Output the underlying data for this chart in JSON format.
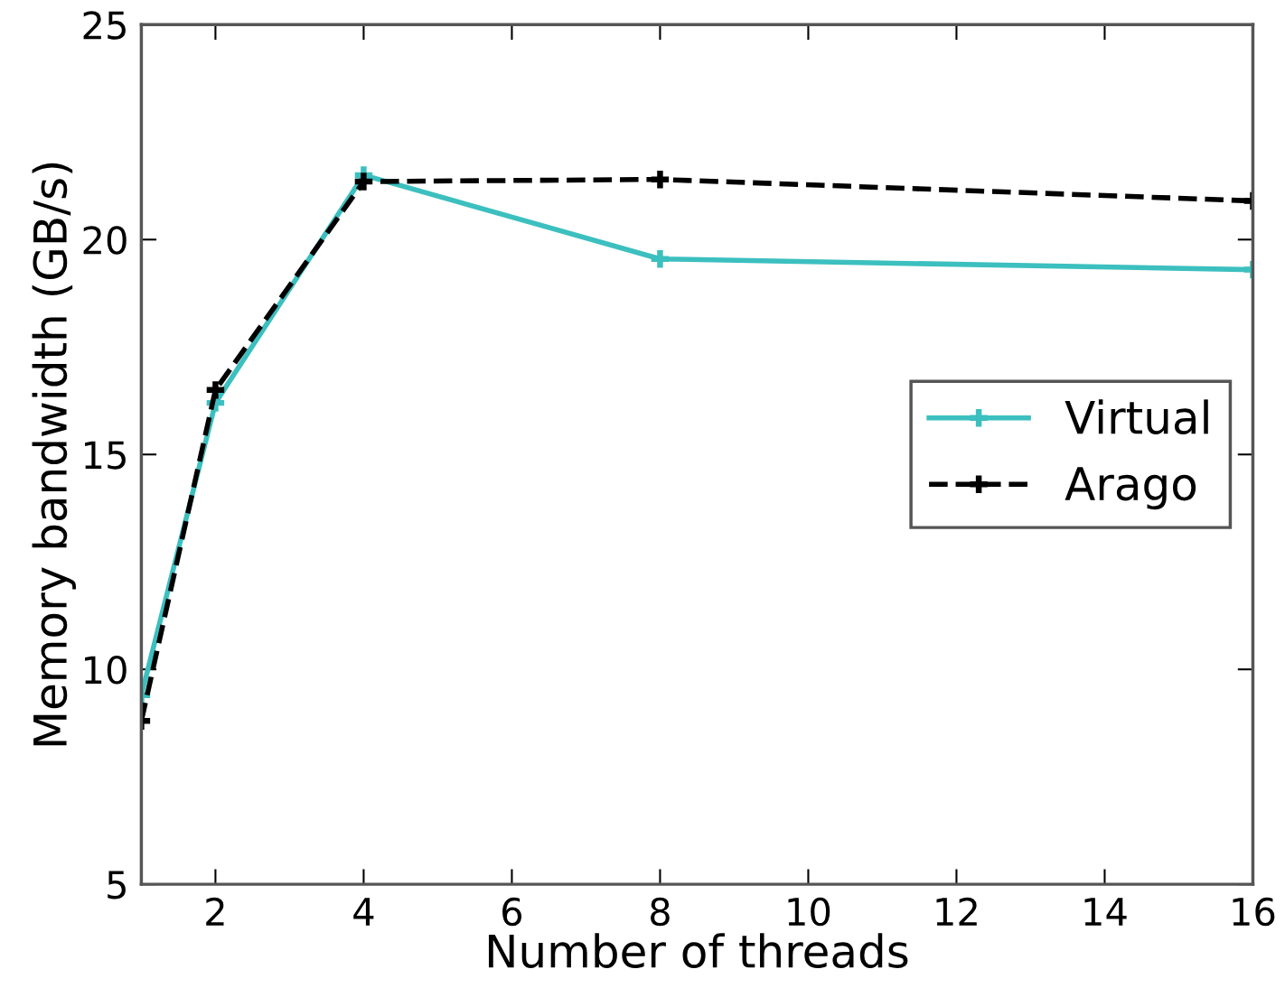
{
  "chart_data": {
    "type": "line",
    "xlabel": "Number of threads",
    "ylabel": "Memory bandwidth (GB/s)",
    "xlim": [
      1,
      16
    ],
    "xticks": [
      2,
      4,
      6,
      8,
      10,
      12,
      14,
      16
    ],
    "ylim": [
      5,
      25
    ],
    "yticks": [
      5,
      10,
      15,
      20,
      25
    ],
    "grid": false,
    "legend": "right",
    "marker": "cross",
    "series": [
      {
        "name": "Virtual",
        "color": "#3cbfbf",
        "line_style": "solid",
        "x": [
          1,
          2,
          4,
          8,
          16
        ],
        "values": [
          9.4,
          16.2,
          21.5,
          19.55,
          19.3
        ]
      },
      {
        "name": "Arago",
        "color": "#000000",
        "line_style": "dashed",
        "x": [
          1,
          2,
          4,
          8,
          16
        ],
        "values": [
          8.8,
          16.5,
          21.35,
          21.4,
          20.9
        ]
      }
    ]
  }
}
